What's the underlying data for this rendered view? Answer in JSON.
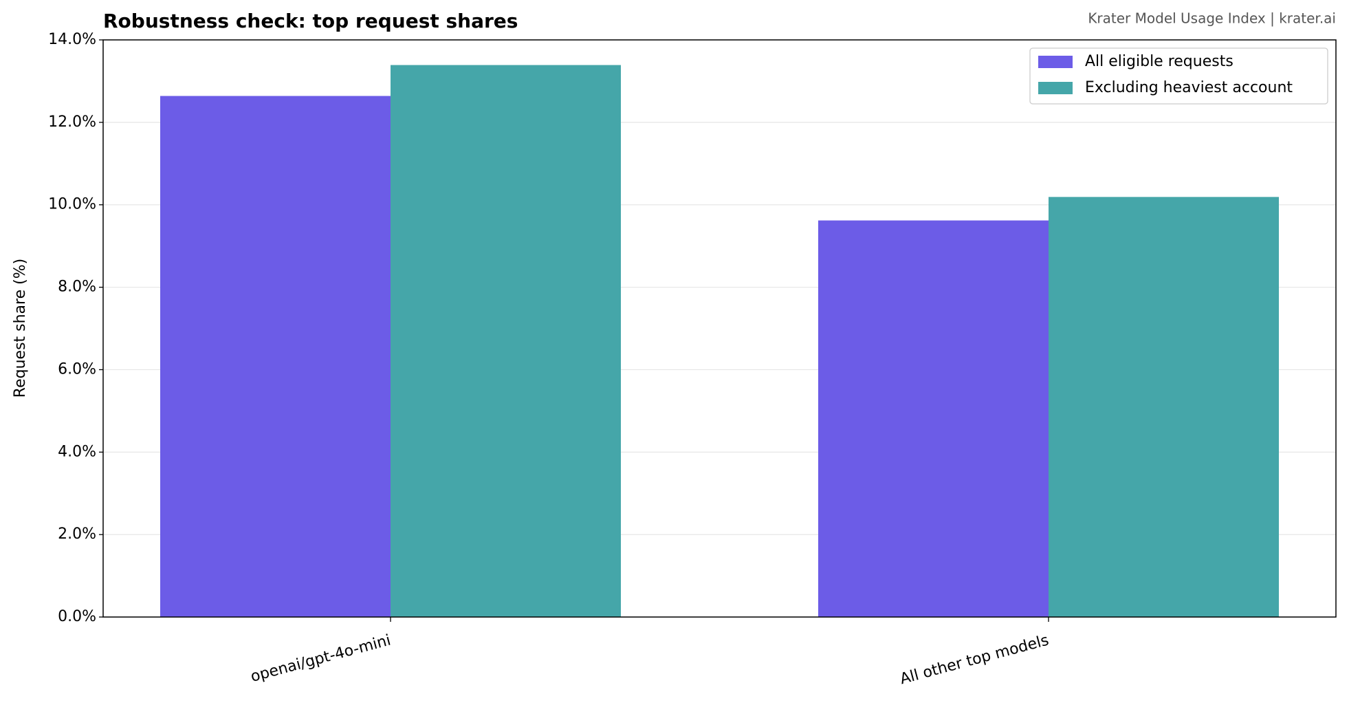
{
  "chart_data": {
    "type": "bar",
    "title": "Robustness check: top request shares",
    "source": "Krater Model Usage Index  |  krater.ai",
    "y_label": "Request share (%)",
    "categories": [
      "openai/gpt-4o-mini",
      "All other top models"
    ],
    "series": [
      {
        "name": "All eligible requests",
        "color": "#6c5ce7",
        "values": [
          12.64,
          9.62
        ]
      },
      {
        "name": "Excluding heaviest account",
        "color": "#45a6a9",
        "values": [
          13.39,
          10.19
        ]
      }
    ],
    "ylim": [
      0,
      14
    ],
    "yticks": [
      {
        "value": 0,
        "label": "0.0%"
      },
      {
        "value": 2,
        "label": "2.0%"
      },
      {
        "value": 4,
        "label": "4.0%"
      },
      {
        "value": 6,
        "label": "6.0%"
      },
      {
        "value": 8,
        "label": "8.0%"
      },
      {
        "value": 10,
        "label": "10.0%"
      },
      {
        "value": 12,
        "label": "12.0%"
      },
      {
        "value": 14,
        "label": "14.0%"
      }
    ],
    "grid": true,
    "legend": "upper right"
  }
}
